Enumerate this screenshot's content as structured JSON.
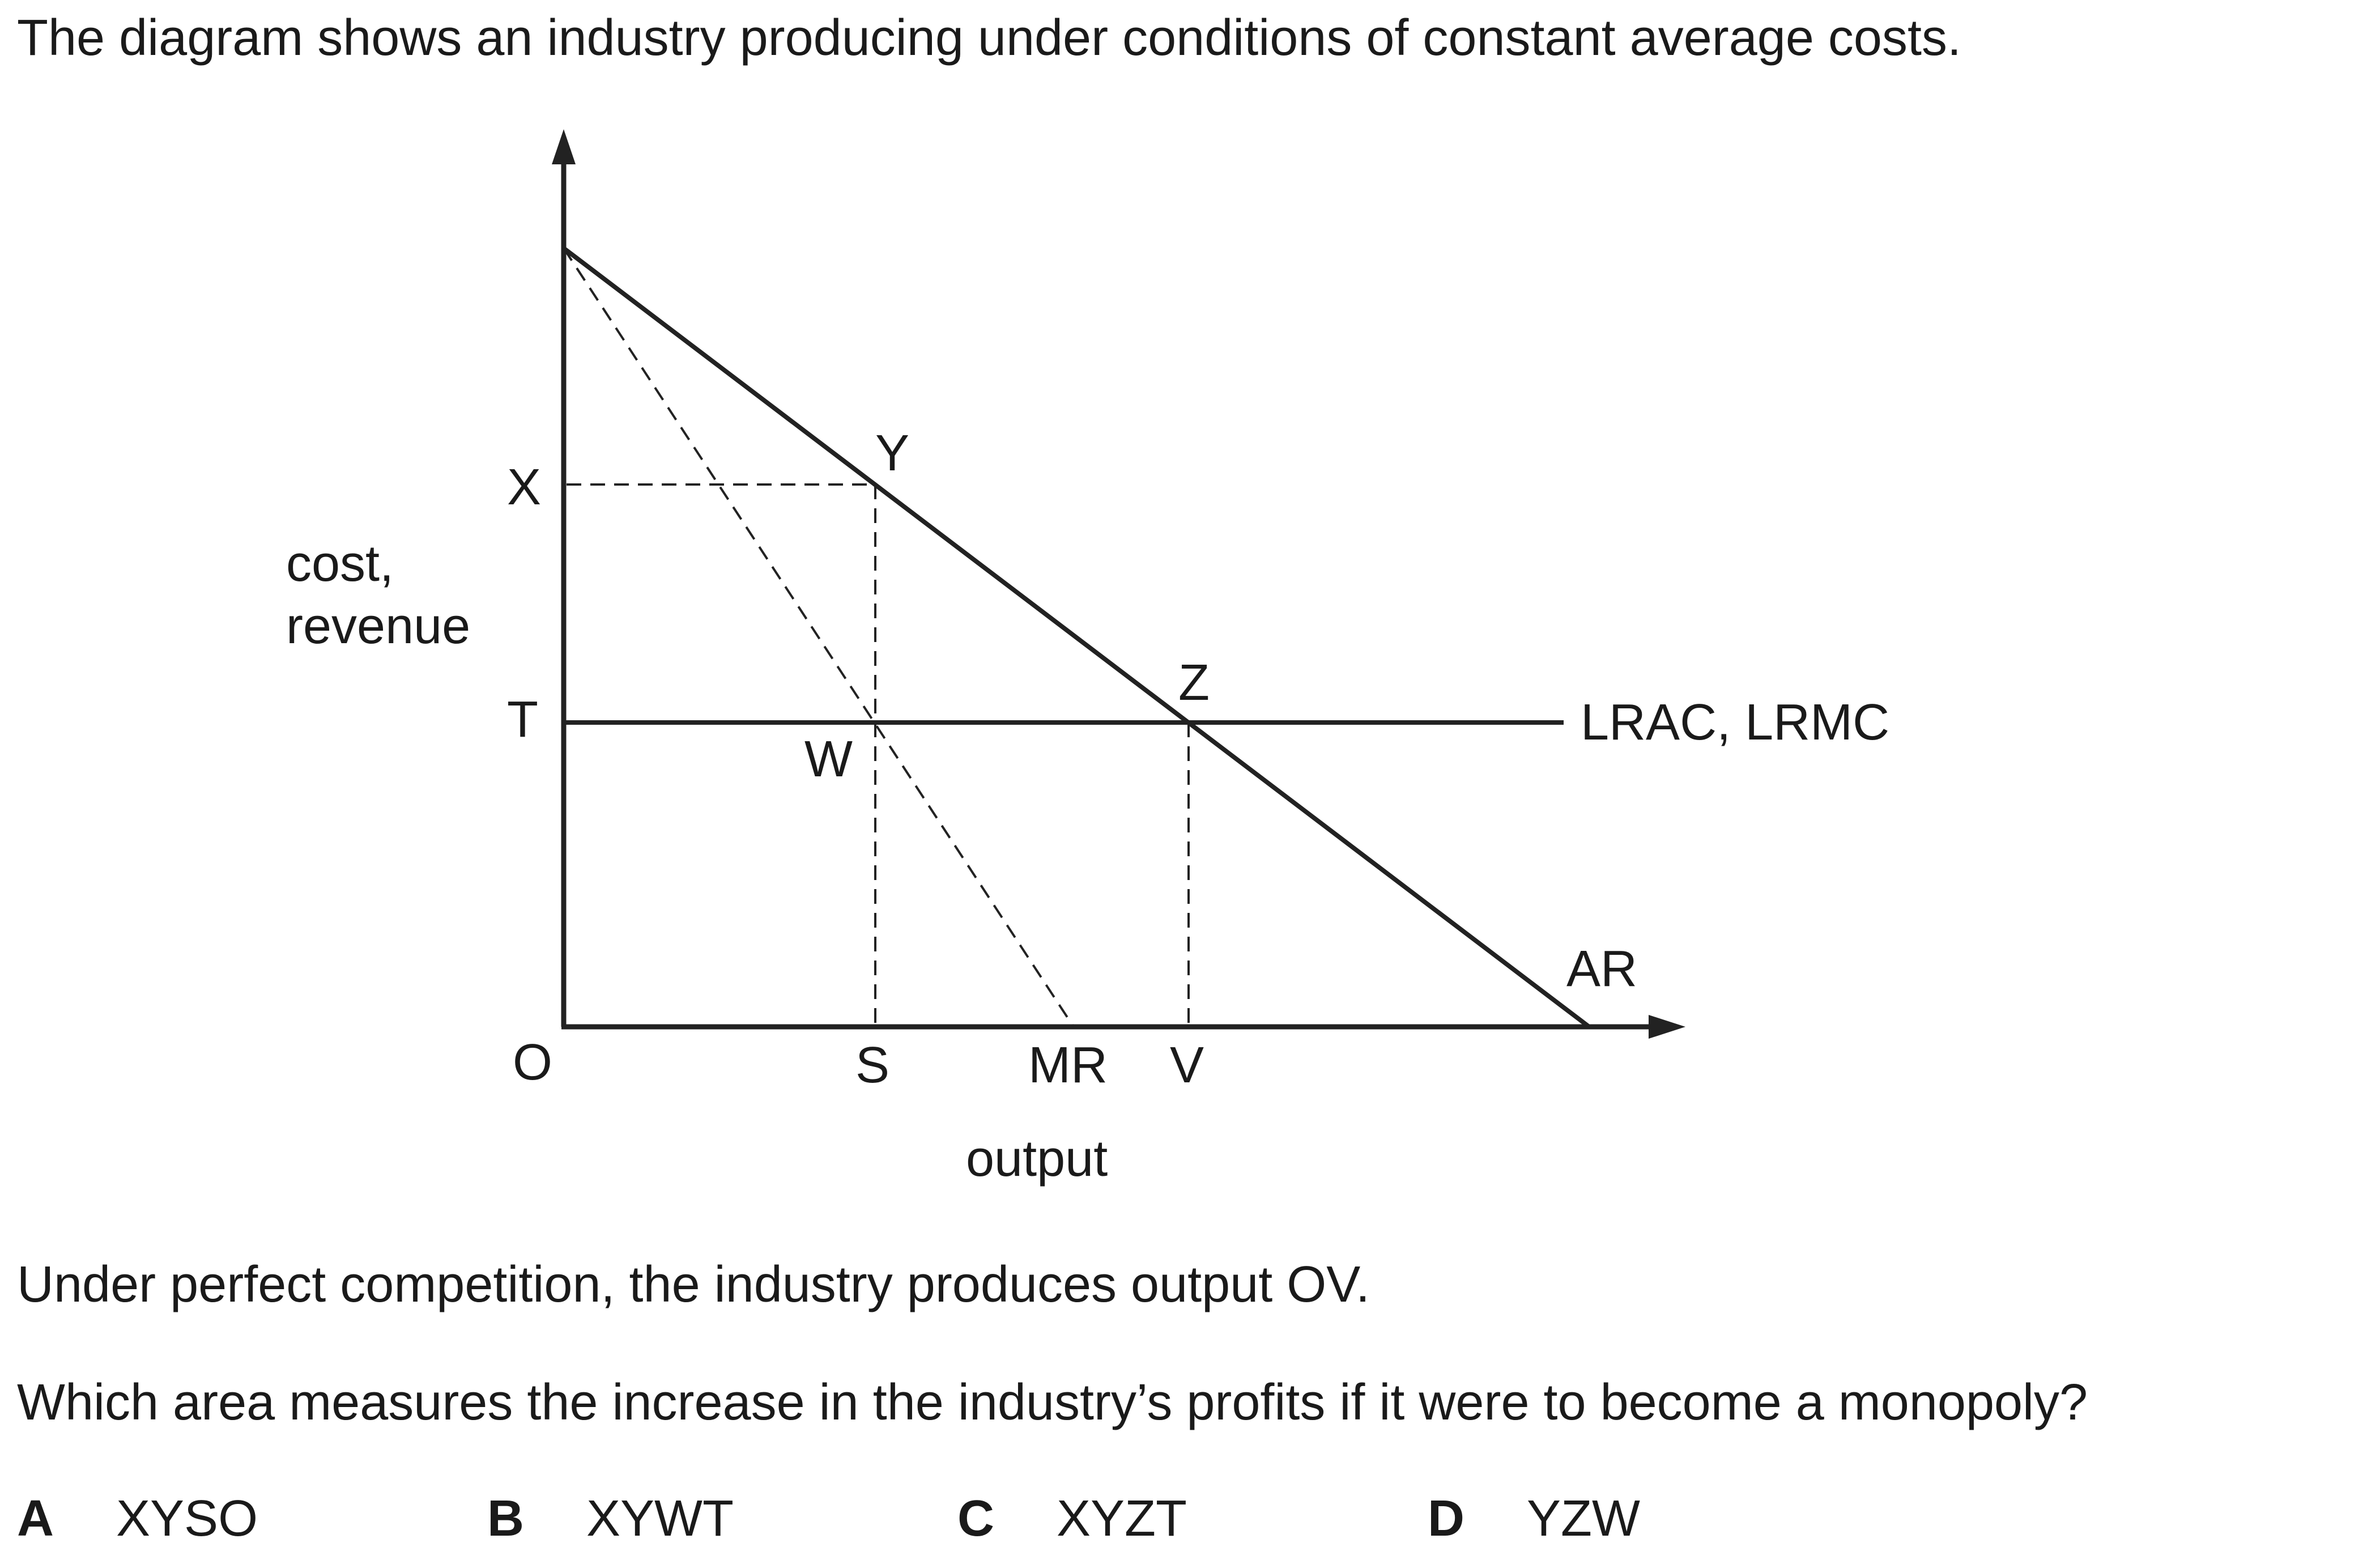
{
  "question": {
    "intro": "The diagram shows an industry producing under conditions of constant average costs.",
    "statement": "Under perfect competition, the industry produces output OV.",
    "prompt": "Which area measures the increase in the industry’s profits if it were to become a monopoly?"
  },
  "diagram": {
    "y_axis_label_line1": "cost,",
    "y_axis_label_line2": "revenue",
    "x_axis_label": "output",
    "points": {
      "X": "X",
      "T": "T",
      "O": "O",
      "Y": "Y",
      "Z": "Z",
      "W": "W",
      "S": "S",
      "MR": "MR",
      "V": "V"
    },
    "curves": {
      "cost": "LRAC, LRMC",
      "demand": "AR"
    }
  },
  "options": [
    {
      "letter": "A",
      "text": "XYSO"
    },
    {
      "letter": "B",
      "text": "XYWT"
    },
    {
      "letter": "C",
      "text": "XYZT"
    },
    {
      "letter": "D",
      "text": "YZW"
    }
  ]
}
